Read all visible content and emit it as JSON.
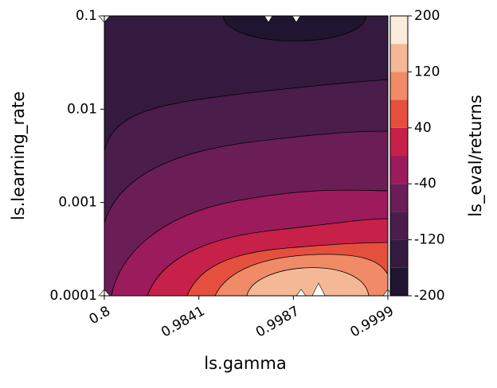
{
  "chart_data": {
    "type": "contour",
    "xlabel": "ls.gamma",
    "ylabel": "ls.learning_rate",
    "colorbar_label": "ls_eval/returns",
    "x_categories": [
      "0.8",
      "0.9841",
      "0.9987",
      "0.9999"
    ],
    "ylim": [
      0.0001,
      0.1
    ],
    "yticks": [
      0.0001,
      0.001,
      0.01,
      0.1
    ],
    "log_y": true,
    "levels": [
      -200,
      -160,
      -120,
      -80,
      -40,
      0,
      40,
      80,
      120,
      160,
      200
    ],
    "colors": [
      "#1f1530",
      "#341a3e",
      "#4b1d4b",
      "#6b1d56",
      "#9c1b5c",
      "#c72049",
      "#e5503e",
      "#f08a67",
      "#f5b896",
      "#faebdd"
    ],
    "clim": [
      -200,
      200
    ],
    "cticks": [
      -200,
      -120,
      -40,
      40,
      120,
      200
    ]
  }
}
